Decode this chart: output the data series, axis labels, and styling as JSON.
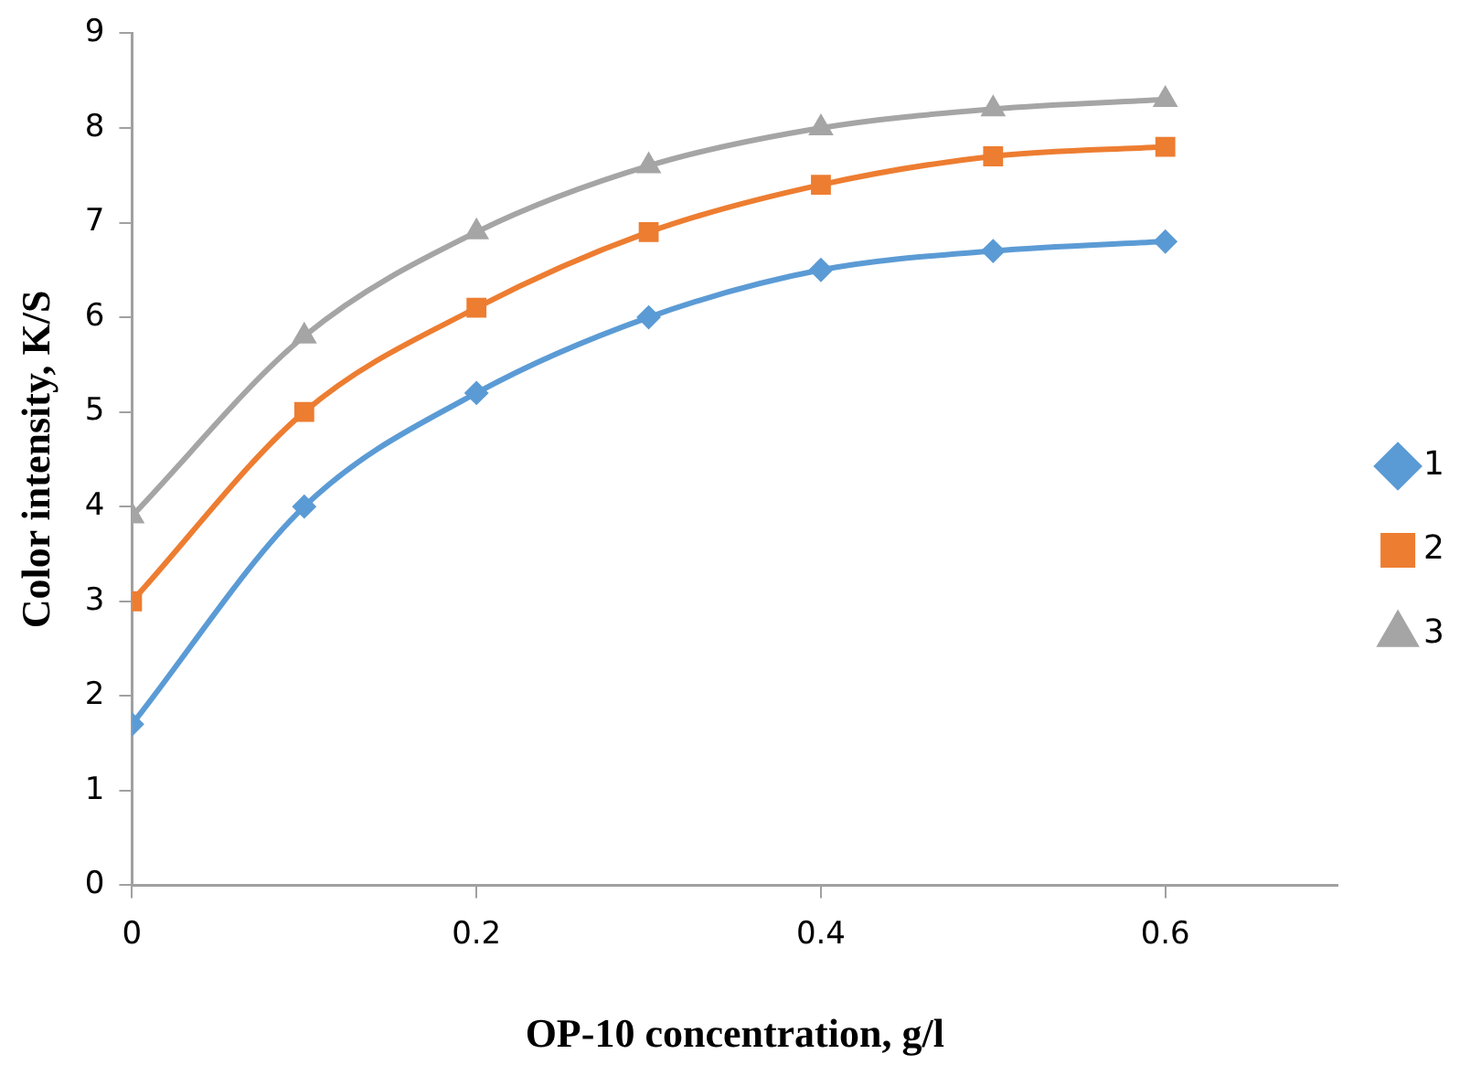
{
  "chart_data": {
    "type": "line",
    "xlabel": "OP-10 concentration, g/l",
    "ylabel": "Color intensity, K/S",
    "x": [
      0,
      0.1,
      0.2,
      0.3,
      0.4,
      0.5,
      0.6
    ],
    "series": [
      {
        "name": "1",
        "color": "#5b9bd5",
        "marker": "diamond",
        "values": [
          1.7,
          4.0,
          5.2,
          6.0,
          6.5,
          6.7,
          6.8
        ]
      },
      {
        "name": "2",
        "color": "#ed7d31",
        "marker": "square",
        "values": [
          3.0,
          5.0,
          6.1,
          6.9,
          7.4,
          7.7,
          7.8
        ]
      },
      {
        "name": "3",
        "color": "#a5a5a5",
        "marker": "triangle",
        "values": [
          3.9,
          5.8,
          6.9,
          7.6,
          8.0,
          8.2,
          8.3
        ]
      }
    ],
    "xlim": [
      0,
      0.7
    ],
    "xticks": [
      0,
      0.2,
      0.4,
      0.6
    ],
    "ylim": [
      0,
      9
    ],
    "yticks": [
      0,
      1,
      2,
      3,
      4,
      5,
      6,
      7,
      8,
      9
    ],
    "grid": false,
    "legend": "right"
  }
}
